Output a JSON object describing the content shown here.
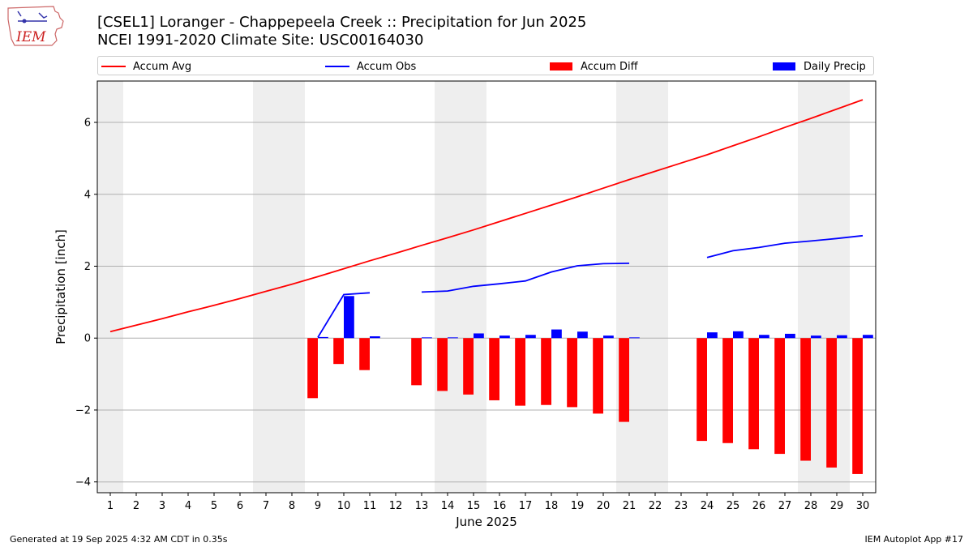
{
  "title_line1": "[CSEL1] Loranger - Chappepeela Creek :: Precipitation for Jun 2025",
  "title_line2": "NCEI 1991-2020 Climate Site: USC00164030",
  "logo_text": "IEM",
  "footer_left": "Generated at 19 Sep 2025 4:32 AM CDT in 0.35s",
  "footer_right": "IEM Autoplot App #17",
  "colors": {
    "avg": "#ff0000",
    "obs": "#0000ff",
    "diff": "#ff0000",
    "daily": "#0000ff",
    "weekend": "#eeeeee",
    "grid": "#b0b0b0"
  },
  "legend": [
    {
      "label": "Accum Avg",
      "kind": "line",
      "color": "#ff0000"
    },
    {
      "label": "Accum Obs",
      "kind": "line",
      "color": "#0000ff"
    },
    {
      "label": "Accum Diff",
      "kind": "box",
      "color": "#ff0000"
    },
    {
      "label": "Daily Precip",
      "kind": "box",
      "color": "#0000ff"
    }
  ],
  "chart_data": {
    "type": "bar",
    "xlabel": "June 2025",
    "ylabel": "Precipitation [inch]",
    "xlim": [
      0.5,
      30.5
    ],
    "ylim": [
      -4.3,
      7.15
    ],
    "yticks": [
      -4,
      -2,
      0,
      2,
      4,
      6
    ],
    "ytick_labels": [
      "−4",
      "−2",
      "0",
      "2",
      "4",
      "6"
    ],
    "x_ticks": [
      1,
      2,
      3,
      4,
      5,
      6,
      7,
      8,
      9,
      10,
      11,
      12,
      13,
      14,
      15,
      16,
      17,
      18,
      19,
      20,
      21,
      22,
      23,
      24,
      25,
      26,
      27,
      28,
      29,
      30
    ],
    "grid": "horizontal",
    "weekend_days": [
      1,
      7,
      8,
      14,
      15,
      21,
      22,
      28,
      29
    ],
    "series": [
      {
        "name": "Accum Avg",
        "type": "line",
        "x": [
          1,
          2,
          3,
          4,
          5,
          6,
          7,
          8,
          9,
          10,
          11,
          12,
          13,
          14,
          15,
          16,
          17,
          18,
          19,
          20,
          21,
          22,
          23,
          24,
          25,
          26,
          27,
          28,
          29,
          30
        ],
        "values": [
          0.18,
          0.36,
          0.54,
          0.73,
          0.91,
          1.1,
          1.3,
          1.5,
          1.71,
          1.93,
          2.15,
          2.36,
          2.58,
          2.79,
          3.01,
          3.24,
          3.47,
          3.7,
          3.93,
          4.17,
          4.41,
          4.64,
          4.87,
          5.1,
          5.35,
          5.6,
          5.86,
          6.11,
          6.37,
          6.63
        ]
      },
      {
        "name": "Accum Obs",
        "type": "line",
        "x": [
          9,
          10,
          11,
          12,
          13,
          14,
          15,
          16,
          17,
          18,
          19,
          20,
          21,
          22,
          23,
          24,
          25,
          26,
          27,
          28,
          29,
          30
        ],
        "values": [
          0.02,
          1.21,
          1.26,
          null,
          1.28,
          1.31,
          1.44,
          1.51,
          1.59,
          1.84,
          2.01,
          2.07,
          2.08,
          null,
          null,
          2.24,
          2.43,
          2.52,
          2.64,
          2.7,
          2.77,
          2.85
        ]
      },
      {
        "name": "Accum Diff",
        "type": "bar",
        "x": [
          9,
          10,
          11,
          13,
          14,
          15,
          16,
          17,
          18,
          19,
          20,
          21,
          24,
          25,
          26,
          27,
          28,
          29,
          30
        ],
        "values": [
          -1.67,
          -0.72,
          -0.89,
          -1.31,
          -1.47,
          -1.57,
          -1.73,
          -1.88,
          -1.86,
          -1.92,
          -2.1,
          -2.33,
          -2.86,
          -2.92,
          -3.09,
          -3.22,
          -3.41,
          -3.6,
          -3.78
        ]
      },
      {
        "name": "Daily Precip",
        "type": "bar",
        "x": [
          9,
          10,
          11,
          13,
          14,
          15,
          16,
          17,
          18,
          19,
          20,
          21,
          24,
          25,
          26,
          27,
          28,
          29,
          30
        ],
        "values": [
          0.03,
          1.17,
          0.05,
          0.02,
          0.02,
          0.13,
          0.07,
          0.09,
          0.24,
          0.18,
          0.07,
          0.02,
          0.16,
          0.19,
          0.09,
          0.12,
          0.07,
          0.08,
          0.09
        ]
      }
    ]
  }
}
